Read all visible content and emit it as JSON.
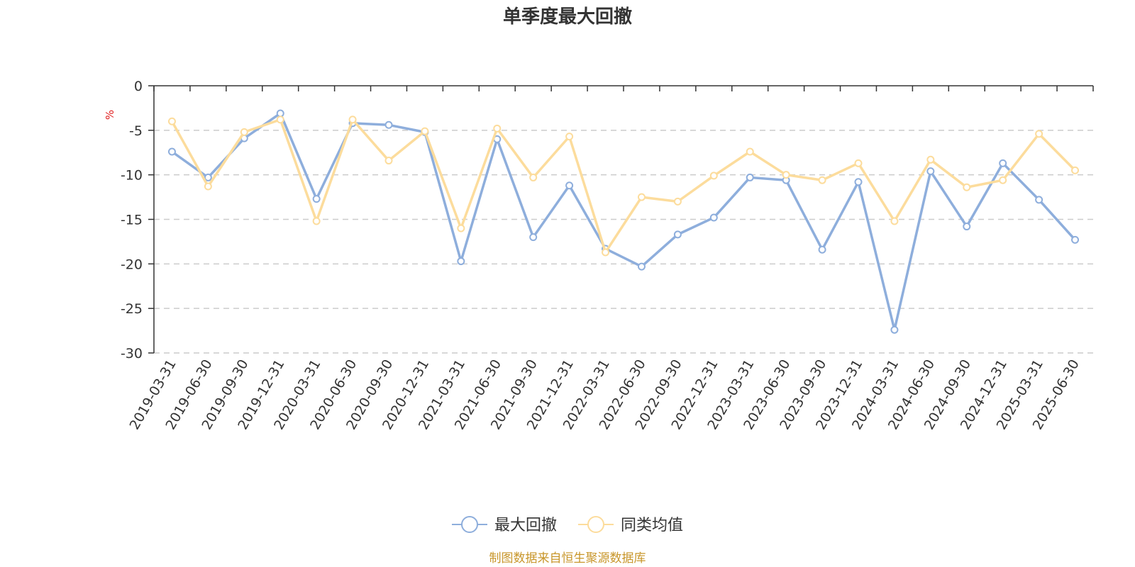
{
  "chart_data": {
    "type": "line",
    "title": "单季度最大回撤",
    "ylabel": "%",
    "ylim": [
      -30,
      0
    ],
    "yticks": [
      0,
      -5,
      -10,
      -15,
      -20,
      -25,
      -30
    ],
    "grid": true,
    "legend_position": "bottom",
    "categories": [
      "2019-03-31",
      "2019-06-30",
      "2019-09-30",
      "2019-12-31",
      "2020-03-31",
      "2020-06-30",
      "2020-09-30",
      "2020-12-31",
      "2021-03-31",
      "2021-06-30",
      "2021-09-30",
      "2021-12-31",
      "2022-03-31",
      "2022-06-30",
      "2022-09-30",
      "2022-12-31",
      "2023-03-31",
      "2023-06-30",
      "2023-09-30",
      "2023-12-31",
      "2024-03-31",
      "2024-06-30",
      "2024-09-30",
      "2024-12-31",
      "2025-03-31",
      "2025-06-30"
    ],
    "series": [
      {
        "name": "最大回撤",
        "color": "#8eaedc",
        "values": [
          -7.4,
          -10.3,
          -5.9,
          -3.1,
          -12.7,
          -4.2,
          -4.4,
          -5.2,
          -19.7,
          -6.0,
          -17.0,
          -11.2,
          -18.3,
          -20.3,
          -16.7,
          -14.8,
          -10.3,
          -10.6,
          -18.4,
          -10.8,
          -27.4,
          -9.6,
          -15.8,
          -8.7,
          -12.8,
          -17.3
        ]
      },
      {
        "name": "同类均值",
        "color": "#fcdc9c",
        "values": [
          -4.0,
          -11.3,
          -5.2,
          -3.8,
          -15.2,
          -3.8,
          -8.4,
          -5.1,
          -16.0,
          -4.8,
          -10.3,
          -5.7,
          -18.7,
          -12.5,
          -13.0,
          -10.1,
          -7.4,
          -10.0,
          -10.6,
          -8.7,
          -15.2,
          -8.3,
          -11.4,
          -10.6,
          -5.4,
          -9.5
        ]
      }
    ],
    "source_note": "制图数据来自恒生聚源数据库"
  }
}
